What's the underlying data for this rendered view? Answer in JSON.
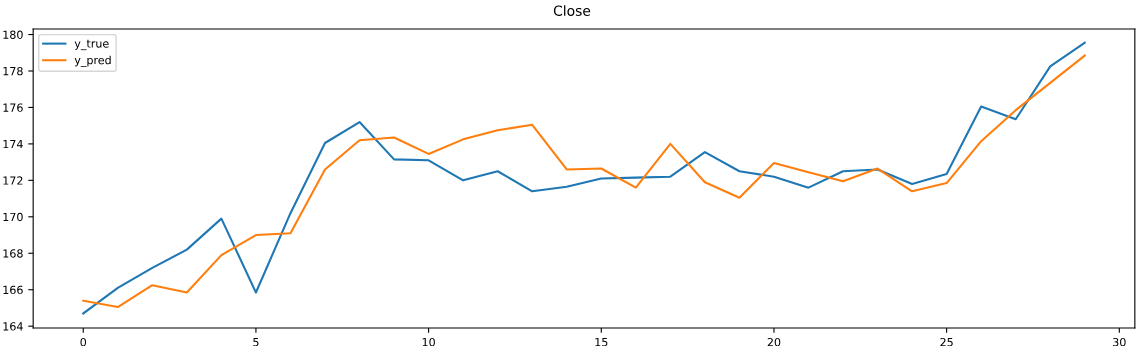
{
  "chart_data": {
    "type": "line",
    "title": "Close",
    "x": [
      0,
      1,
      2,
      3,
      4,
      5,
      6,
      7,
      8,
      9,
      10,
      11,
      12,
      13,
      14,
      15,
      16,
      17,
      18,
      19,
      20,
      21,
      22,
      23,
      24,
      25,
      26,
      27,
      28,
      29
    ],
    "series": [
      {
        "name": "y_true",
        "color": "#1f77b4",
        "values": [
          164.7,
          166.1,
          167.2,
          168.2,
          169.9,
          165.85,
          170.2,
          174.05,
          175.2,
          173.15,
          173.1,
          172.0,
          172.5,
          171.4,
          171.65,
          172.1,
          172.15,
          172.2,
          173.55,
          172.5,
          172.2,
          171.6,
          172.5,
          172.6,
          171.8,
          172.35,
          176.05,
          175.35,
          178.25,
          179.55
        ]
      },
      {
        "name": "y_pred",
        "color": "#ff7f0e",
        "values": [
          165.4,
          165.05,
          166.25,
          165.85,
          167.9,
          169.0,
          169.1,
          172.6,
          174.2,
          174.35,
          173.45,
          174.25,
          174.75,
          175.05,
          172.6,
          172.65,
          171.6,
          174.0,
          171.9,
          171.05,
          172.95,
          172.45,
          171.95,
          172.65,
          171.4,
          171.85,
          174.15,
          175.85,
          177.35,
          178.85
        ]
      }
    ],
    "xlim": [
      -1.45,
      30.45
    ],
    "xticks": [
      0,
      5,
      10,
      15,
      20,
      25,
      30
    ],
    "ylim": [
      163.9,
      180.3
    ],
    "yticks": [
      164,
      166,
      168,
      170,
      172,
      174,
      176,
      178,
      180
    ],
    "legend": "top left",
    "grid": false
  }
}
